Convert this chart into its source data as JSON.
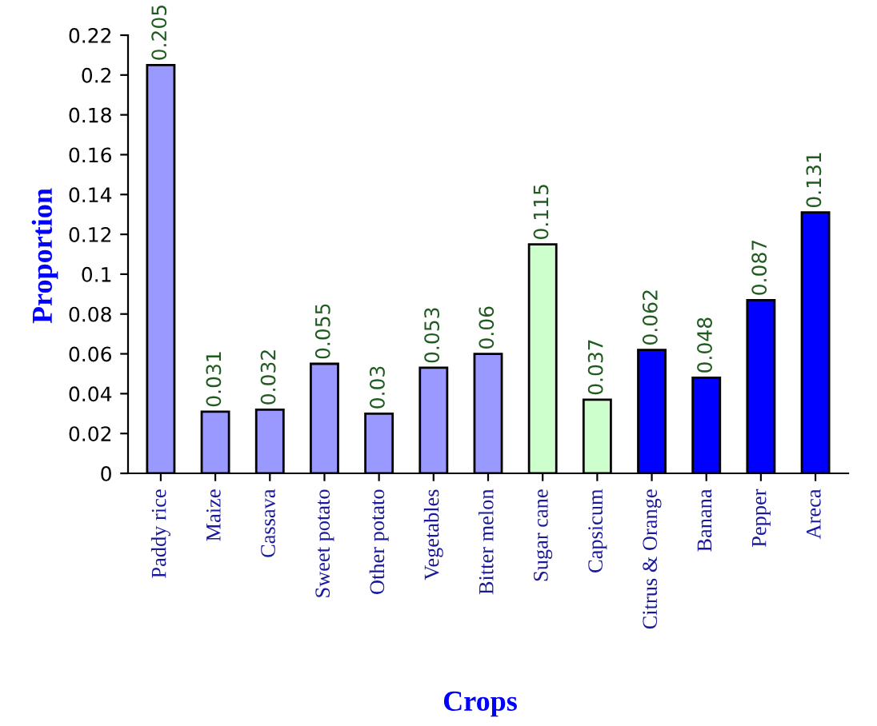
{
  "chart_data": {
    "type": "bar",
    "xlabel": "Crops",
    "ylabel": "Proportion",
    "categories": [
      "Paddy rice",
      "Maize",
      "Cassava",
      "Sweet potato",
      "Other potato",
      "Vegetables",
      "Bitter melon",
      "Sugar cane",
      "Capsicum",
      "Citrus & Orange",
      "Banana",
      "Pepper",
      "Areca"
    ],
    "values": [
      0.205,
      0.031,
      0.032,
      0.055,
      0.03,
      0.053,
      0.06,
      0.115,
      0.037,
      0.062,
      0.048,
      0.087,
      0.131
    ],
    "colors": [
      "#9999ff",
      "#9999ff",
      "#9999ff",
      "#9999ff",
      "#9999ff",
      "#9999ff",
      "#9999ff",
      "#ccffcc",
      "#ccffcc",
      "#0000ff",
      "#0000ff",
      "#0000ff",
      "#0000ff"
    ],
    "ylim": [
      0,
      0.22
    ],
    "yticks": [
      0,
      0.02,
      0.04,
      0.06,
      0.08,
      0.1,
      0.12,
      0.14,
      0.16,
      0.18,
      0.2,
      0.22
    ],
    "data_labels": true,
    "grid": false,
    "legend": false
  }
}
